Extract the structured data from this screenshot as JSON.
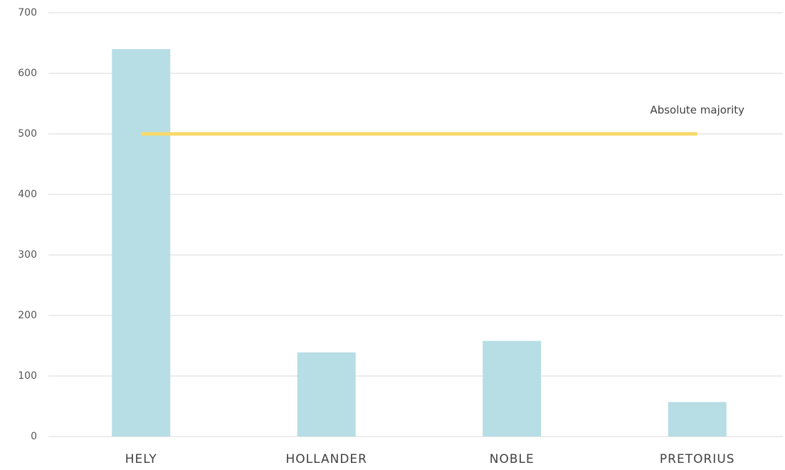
{
  "chart_data": {
    "type": "bar",
    "categories": [
      "HELY",
      "HOLLANDER",
      "NOBLE",
      "PRETORIUS"
    ],
    "values": [
      640,
      139,
      158,
      57
    ],
    "color": "#b7dde5",
    "ylim": [
      0,
      700
    ],
    "yticks": [
      0,
      100,
      200,
      300,
      400,
      500,
      600,
      700
    ],
    "grid": true,
    "reference_line": {
      "value": 500,
      "label": "Absolute majority",
      "color": "#f7d96b"
    }
  }
}
